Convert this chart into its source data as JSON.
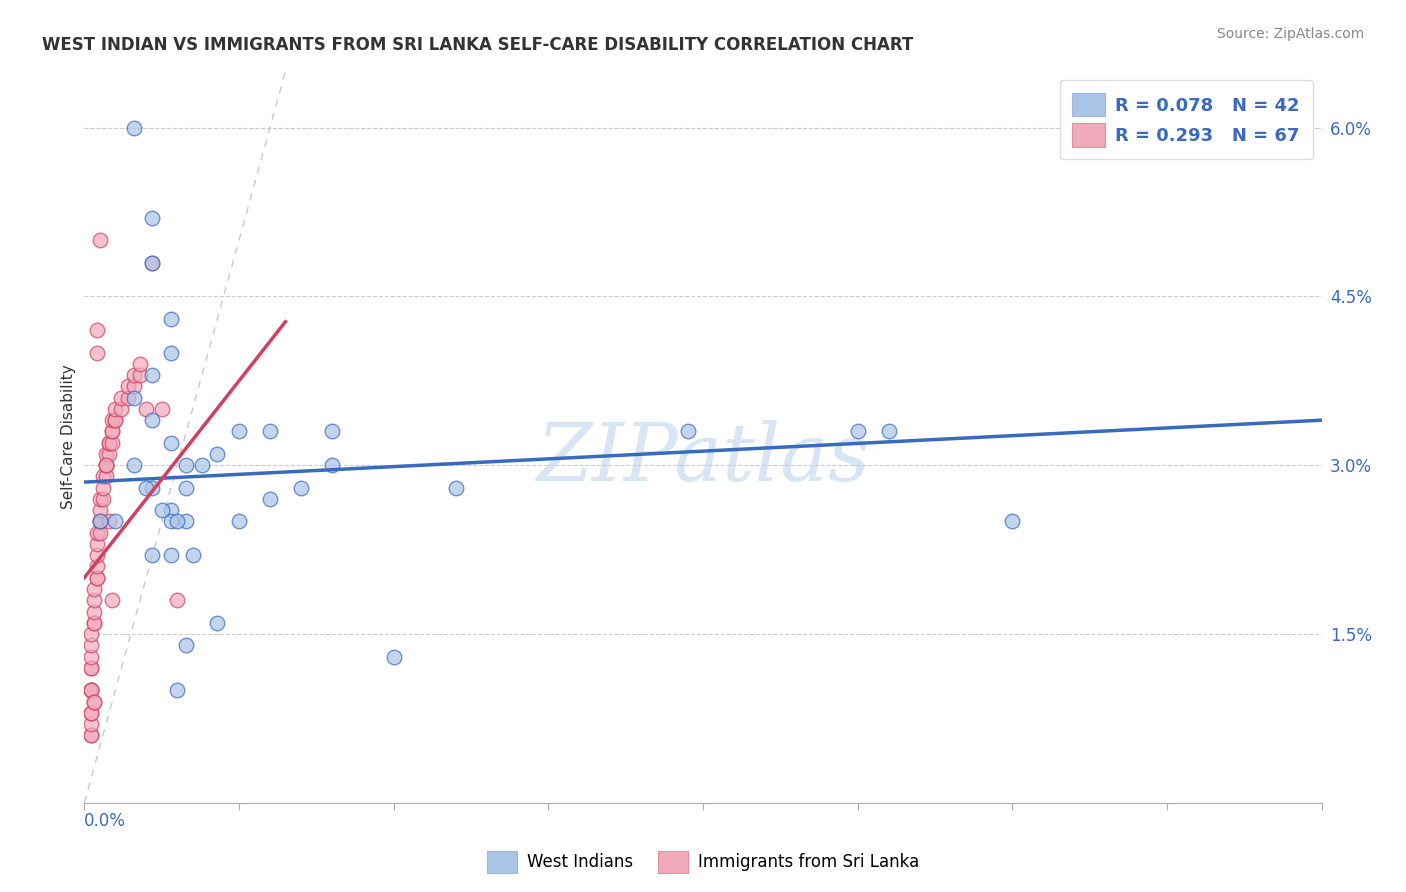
{
  "title": "WEST INDIAN VS IMMIGRANTS FROM SRI LANKA SELF-CARE DISABILITY CORRELATION CHART",
  "source": "Source: ZipAtlas.com",
  "ylabel": "Self-Care Disability",
  "right_yticks": [
    "1.5%",
    "3.0%",
    "4.5%",
    "6.0%"
  ],
  "right_ytick_vals": [
    0.015,
    0.03,
    0.045,
    0.06
  ],
  "xlim": [
    0.0,
    0.4
  ],
  "ylim": [
    0.0,
    0.065
  ],
  "color_blue": "#aac4e8",
  "color_pink": "#f0aabb",
  "line_blue": "#3a6abf",
  "line_pink": "#d04060",
  "line_diag": "#c8c8c8",
  "watermark": "ZIPatlas",
  "wi_line_x0": 0.0,
  "wi_line_y0": 0.0285,
  "wi_line_x1": 0.4,
  "wi_line_y1": 0.034,
  "sl_line_x0": 0.0,
  "sl_line_y0": 0.02,
  "sl_line_x1": 0.04,
  "sl_line_y1": 0.034,
  "west_indians_x": [
    0.016,
    0.022,
    0.022,
    0.028,
    0.028,
    0.022,
    0.016,
    0.022,
    0.028,
    0.033,
    0.038,
    0.033,
    0.022,
    0.028,
    0.028,
    0.033,
    0.022,
    0.028,
    0.05,
    0.043,
    0.06,
    0.08,
    0.1,
    0.12,
    0.08,
    0.07,
    0.06,
    0.05,
    0.043,
    0.033,
    0.25,
    0.26,
    0.03,
    0.3,
    0.016,
    0.02,
    0.025,
    0.03,
    0.035,
    0.005,
    0.01,
    0.195
  ],
  "west_indians_y": [
    0.06,
    0.052,
    0.048,
    0.043,
    0.04,
    0.038,
    0.036,
    0.034,
    0.032,
    0.03,
    0.03,
    0.028,
    0.028,
    0.026,
    0.025,
    0.025,
    0.022,
    0.022,
    0.033,
    0.031,
    0.033,
    0.033,
    0.013,
    0.028,
    0.03,
    0.028,
    0.027,
    0.025,
    0.016,
    0.014,
    0.033,
    0.033,
    0.01,
    0.025,
    0.03,
    0.028,
    0.026,
    0.025,
    0.022,
    0.025,
    0.025,
    0.033
  ],
  "sri_lanka_x": [
    0.002,
    0.002,
    0.002,
    0.002,
    0.002,
    0.002,
    0.002,
    0.002,
    0.003,
    0.003,
    0.003,
    0.003,
    0.003,
    0.004,
    0.004,
    0.004,
    0.004,
    0.004,
    0.004,
    0.005,
    0.005,
    0.005,
    0.005,
    0.005,
    0.006,
    0.006,
    0.006,
    0.007,
    0.007,
    0.007,
    0.007,
    0.008,
    0.008,
    0.008,
    0.009,
    0.009,
    0.009,
    0.009,
    0.01,
    0.01,
    0.01,
    0.012,
    0.012,
    0.014,
    0.014,
    0.016,
    0.016,
    0.018,
    0.018,
    0.002,
    0.002,
    0.002,
    0.002,
    0.002,
    0.003,
    0.003,
    0.004,
    0.004,
    0.005,
    0.007,
    0.008,
    0.009,
    0.02,
    0.025,
    0.03,
    0.022
  ],
  "sri_lanka_y": [
    0.01,
    0.01,
    0.01,
    0.012,
    0.012,
    0.013,
    0.014,
    0.015,
    0.016,
    0.016,
    0.017,
    0.018,
    0.019,
    0.02,
    0.02,
    0.021,
    0.022,
    0.023,
    0.024,
    0.024,
    0.025,
    0.025,
    0.026,
    0.027,
    0.027,
    0.028,
    0.029,
    0.029,
    0.03,
    0.03,
    0.031,
    0.031,
    0.032,
    0.032,
    0.032,
    0.033,
    0.033,
    0.034,
    0.034,
    0.034,
    0.035,
    0.035,
    0.036,
    0.036,
    0.037,
    0.037,
    0.038,
    0.038,
    0.039,
    0.006,
    0.006,
    0.007,
    0.008,
    0.008,
    0.009,
    0.009,
    0.04,
    0.042,
    0.05,
    0.03,
    0.025,
    0.018,
    0.035,
    0.035,
    0.018,
    0.048
  ]
}
